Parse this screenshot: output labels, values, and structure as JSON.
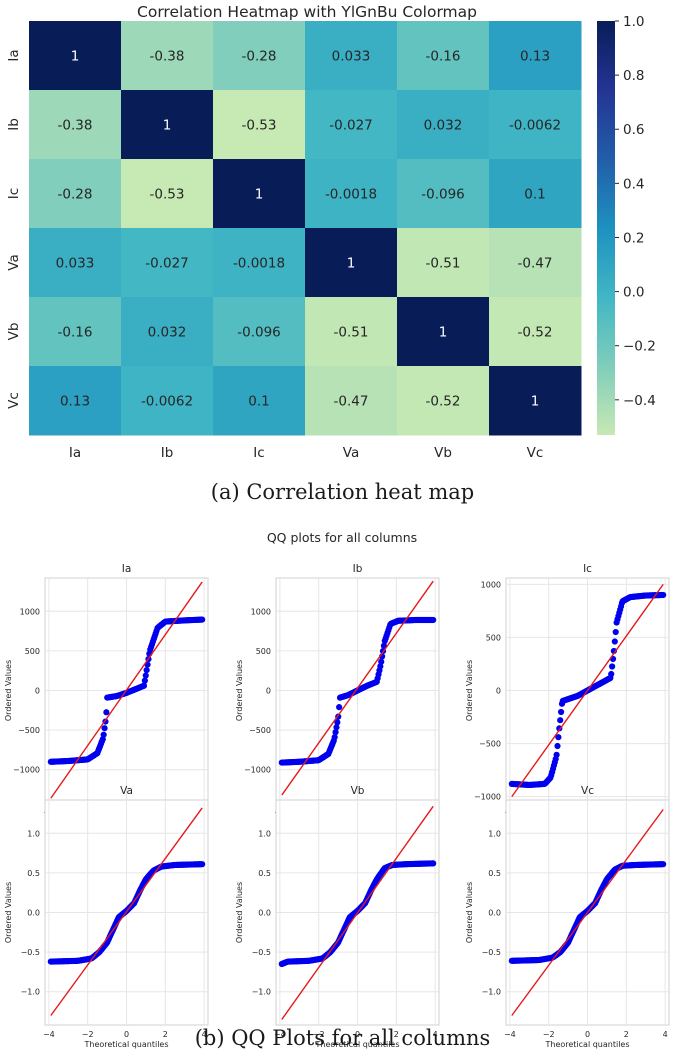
{
  "heatmap": {
    "title": "Correlation Heatmap with YlGnBu Colormap",
    "type": "heatmap",
    "labels": [
      "Ia",
      "Ib",
      "Ic",
      "Va",
      "Vb",
      "Vc"
    ],
    "values": [
      [
        1,
        -0.38,
        -0.28,
        0.033,
        -0.16,
        0.13
      ],
      [
        -0.38,
        1,
        -0.53,
        -0.027,
        0.032,
        -0.0062
      ],
      [
        -0.28,
        -0.53,
        1,
        -0.0018,
        -0.096,
        0.1
      ],
      [
        0.033,
        -0.027,
        -0.0018,
        1,
        -0.51,
        -0.47
      ],
      [
        -0.16,
        0.032,
        -0.096,
        -0.51,
        1,
        -0.52
      ],
      [
        0.13,
        -0.0062,
        0.1,
        -0.47,
        -0.52,
        1
      ]
    ],
    "value_labels": [
      [
        "1",
        "-0.38",
        "-0.28",
        "0.033",
        "-0.16",
        "0.13"
      ],
      [
        "-0.38",
        "1",
        "-0.53",
        "-0.027",
        "0.032",
        "-0.0062"
      ],
      [
        "-0.28",
        "-0.53",
        "1",
        "-0.0018",
        "-0.096",
        "0.1"
      ],
      [
        "0.033",
        "-0.027",
        "-0.0018",
        "1",
        "-0.51",
        "-0.47"
      ],
      [
        "-0.16",
        "0.032",
        "-0.096",
        "-0.51",
        "1",
        "-0.52"
      ],
      [
        "0.13",
        "-0.0062",
        "0.1",
        "-0.47",
        "-0.52",
        "1"
      ]
    ],
    "colorbar": {
      "range": [
        -0.53,
        1.0
      ],
      "ticks": [
        1.0,
        0.8,
        0.6,
        0.4,
        0.2,
        0.0,
        -0.2,
        -0.4
      ],
      "tick_labels": [
        "1.0",
        "0.8",
        "0.6",
        "0.4",
        "0.2",
        "0.0",
        "−0.2",
        "−0.4"
      ]
    },
    "colormap": [
      "#c7e9b4",
      "#7fcdbb",
      "#41b6c4",
      "#1d91c0",
      "#225ea8",
      "#253494",
      "#081d58"
    ],
    "caption": "(a) Correlation heat map"
  },
  "qq": {
    "title": "QQ plots for all columns",
    "xlabel": "Theoretical quantiles",
    "ylabel": "Ordered Values",
    "point_color": "#0000ee",
    "line_color": "#e41a1c",
    "panels": [
      {
        "name": "Ia",
        "type": "scatter",
        "xlim": [
          -4.2,
          4.2
        ],
        "ylim": [
          -1420,
          1420
        ],
        "xticks": [
          -4,
          -2,
          0,
          2,
          4
        ],
        "xtick_labels": [
          "−4",
          "−2",
          "0",
          "2",
          "4"
        ],
        "yticks": [
          1000,
          500,
          0,
          -500,
          -1000
        ],
        "ytick_labels": [
          "1000",
          "500",
          "0",
          "−500",
          "−1000"
        ],
        "fit_line": {
          "x": [
            -3.9,
            3.9
          ],
          "y": [
            -1360,
            1370
          ]
        },
        "quantiles": {
          "x": [
            -3.9,
            -3,
            -2,
            -1.5,
            -1.2,
            -1.05,
            -1,
            -0.5,
            0,
            0.5,
            0.9,
            1.0,
            1.2,
            1.6,
            2,
            3,
            3.9
          ],
          "y": [
            -900,
            -890,
            -870,
            -790,
            -600,
            -330,
            -90,
            -70,
            -30,
            20,
            60,
            200,
            500,
            790,
            870,
            885,
            895
          ]
        }
      },
      {
        "name": "Ib",
        "type": "scatter",
        "xlim": [
          -4.2,
          4.2
        ],
        "ylim": [
          -1420,
          1420
        ],
        "xticks": [
          -4,
          -2,
          0,
          2,
          4
        ],
        "xtick_labels": [
          "−4",
          "−2",
          "0",
          "2",
          "4"
        ],
        "yticks": [
          1000,
          500,
          0,
          -500,
          -1000
        ],
        "ytick_labels": [
          "1000",
          "500",
          "0",
          "−500",
          "−1000"
        ],
        "fit_line": {
          "x": [
            -3.9,
            3.9
          ],
          "y": [
            -1320,
            1380
          ]
        },
        "quantiles": {
          "x": [
            -3.9,
            -3,
            -2,
            -1.5,
            -1.2,
            -1.0,
            -0.9,
            -0.5,
            0,
            0.5,
            1.0,
            1.2,
            1.4,
            1.7,
            2.1,
            3,
            3.9
          ],
          "y": [
            -910,
            -900,
            -880,
            -800,
            -620,
            -350,
            -90,
            -60,
            0,
            60,
            110,
            330,
            620,
            840,
            880,
            890,
            890
          ]
        }
      },
      {
        "name": "Ic",
        "type": "scatter",
        "xlim": [
          -4.2,
          4.2
        ],
        "ylim": [
          -1060,
          1060
        ],
        "xticks": [
          -4,
          -2,
          0,
          2,
          4
        ],
        "xtick_labels": [
          "−4",
          "−2",
          "0",
          "2",
          "4"
        ],
        "yticks": [
          1000,
          500,
          0,
          -500,
          -1000
        ],
        "ytick_labels": [
          "1000",
          "500",
          "0",
          "−500",
          "−1000"
        ],
        "fit_line": {
          "x": [
            -3.9,
            3.9
          ],
          "y": [
            -1000,
            1000
          ]
        },
        "quantiles": {
          "x": [
            -3.9,
            -3,
            -2.2,
            -1.9,
            -1.6,
            -1.45,
            -1.3,
            -0.5,
            0,
            0.6,
            1.2,
            1.35,
            1.5,
            1.8,
            2.2,
            3,
            3.9
          ],
          "y": [
            -880,
            -890,
            -880,
            -820,
            -620,
            -350,
            -100,
            -50,
            0,
            60,
            120,
            350,
            640,
            840,
            880,
            895,
            900
          ]
        }
      },
      {
        "name": "Va",
        "type": "scatter",
        "xlim": [
          -4.2,
          4.2
        ],
        "ylim": [
          -1.42,
          1.42
        ],
        "xticks": [
          -4,
          -2,
          0,
          2,
          4
        ],
        "xtick_labels": [
          "−4",
          "−2",
          "0",
          "2",
          "4"
        ],
        "yticks": [
          1.0,
          0.5,
          0.0,
          -0.5,
          -1.0
        ],
        "ytick_labels": [
          "1.0",
          "0.5",
          "0.0",
          "−0.5",
          "−1.0"
        ],
        "fit_line": {
          "x": [
            -3.9,
            3.9
          ],
          "y": [
            -1.3,
            1.32
          ]
        },
        "quantiles": {
          "x": [
            -3.9,
            -2.5,
            -1.8,
            -1.4,
            -1.0,
            -0.7,
            -0.4,
            0,
            0.4,
            0.7,
            1.0,
            1.4,
            1.8,
            2.5,
            3.9
          ],
          "y": [
            -0.62,
            -0.61,
            -0.58,
            -0.5,
            -0.38,
            -0.22,
            -0.06,
            0.02,
            0.12,
            0.28,
            0.42,
            0.53,
            0.58,
            0.6,
            0.61
          ]
        }
      },
      {
        "name": "Vb",
        "type": "scatter",
        "xlim": [
          -4.2,
          4.2
        ],
        "ylim": [
          -1.42,
          1.42
        ],
        "xticks": [
          -4,
          -2,
          0,
          2,
          4
        ],
        "xtick_labels": [
          "−4",
          "−2",
          "0",
          "2",
          "4"
        ],
        "yticks": [
          1.0,
          0.5,
          0.0,
          -0.5,
          -1.0
        ],
        "ytick_labels": [
          "1.0",
          "0.5",
          "0.0",
          "−0.5",
          "−1.0"
        ],
        "fit_line": {
          "x": [
            -3.9,
            3.9
          ],
          "y": [
            -1.35,
            1.34
          ]
        },
        "quantiles": {
          "x": [
            -3.9,
            -3.6,
            -2.5,
            -1.8,
            -1.4,
            -1.0,
            -0.7,
            -0.4,
            0,
            0.4,
            0.7,
            1.0,
            1.4,
            1.8,
            2.5,
            3.9
          ],
          "y": [
            -0.65,
            -0.62,
            -0.61,
            -0.58,
            -0.5,
            -0.38,
            -0.22,
            -0.06,
            0.02,
            0.12,
            0.28,
            0.42,
            0.56,
            0.6,
            0.61,
            0.62
          ]
        }
      },
      {
        "name": "Vc",
        "type": "scatter",
        "xlim": [
          -4.2,
          4.2
        ],
        "ylim": [
          -1.42,
          1.42
        ],
        "xticks": [
          -4,
          -2,
          0,
          2,
          4
        ],
        "xtick_labels": [
          "−4",
          "−2",
          "0",
          "2",
          "4"
        ],
        "yticks": [
          1.0,
          0.5,
          0.0,
          -0.5,
          -1.0
        ],
        "ytick_labels": [
          "1.0",
          "0.5",
          "0.0",
          "−0.5",
          "−1.0"
        ],
        "fit_line": {
          "x": [
            -3.9,
            3.9
          ],
          "y": [
            -1.3,
            1.3
          ]
        },
        "quantiles": {
          "x": [
            -3.9,
            -2.5,
            -1.8,
            -1.4,
            -1.0,
            -0.7,
            -0.4,
            0,
            0.4,
            0.7,
            1.0,
            1.4,
            1.8,
            2.5,
            3.9
          ],
          "y": [
            -0.61,
            -0.6,
            -0.57,
            -0.5,
            -0.38,
            -0.22,
            -0.06,
            0.02,
            0.12,
            0.28,
            0.42,
            0.54,
            0.59,
            0.6,
            0.61
          ]
        }
      }
    ],
    "caption": "(b) QQ Plots for all columns"
  }
}
